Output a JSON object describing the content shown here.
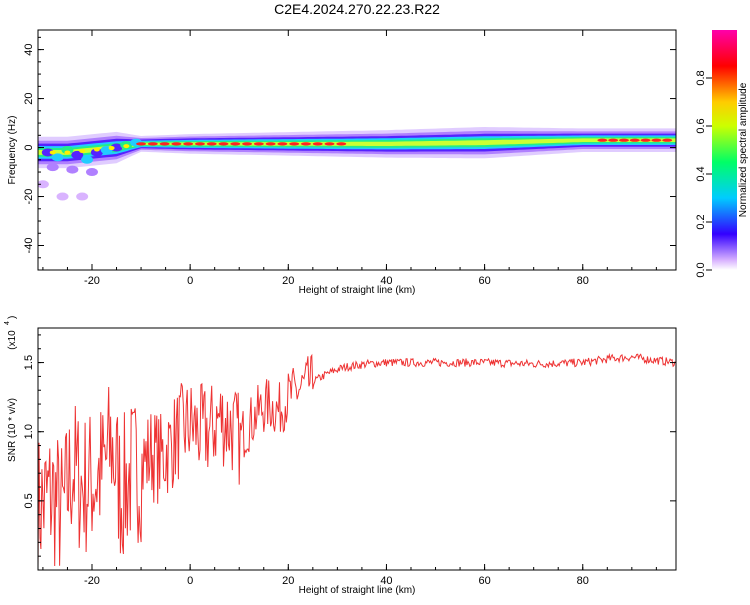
{
  "title": "C2E4.2024.270.22.23.R22",
  "chart_data": [
    {
      "type": "heatmap",
      "xlabel": "Height of straight line (km)",
      "ylabel": "Frequency (Hz)",
      "xlim": [
        -31,
        99
      ],
      "ylim": [
        -50,
        48
      ],
      "x_ticks": [
        -20,
        0,
        20,
        40,
        60,
        80
      ],
      "y_ticks": [
        40,
        20,
        0,
        -20,
        -40
      ],
      "colorbar": {
        "label": "Normalized spectral amplitude",
        "range": [
          0,
          1
        ],
        "ticks": [
          "0.0",
          "0.2",
          "0.4",
          "0.6",
          "0.8"
        ],
        "colors": [
          "#ffffff",
          "#bf80ff",
          "#3300ff",
          "#00ccff",
          "#00ff66",
          "#ffff00",
          "#ff0000",
          "#ff00aa"
        ]
      },
      "ridge": {
        "description_x_km": [
          -30,
          -25,
          -20,
          -15,
          -10,
          0,
          20,
          40,
          60,
          80,
          99
        ],
        "center_hz": [
          -2,
          -2,
          -1,
          0,
          1.5,
          1.5,
          1.5,
          1.5,
          2,
          3,
          3
        ],
        "halfwidth_hz": [
          4,
          4,
          4,
          4,
          2,
          2.5,
          3,
          3.5,
          4,
          3,
          3
        ]
      }
    },
    {
      "type": "line",
      "xlabel": "Height of straight line (km)",
      "ylabel": "SNR (10 * v/v)",
      "yscale_label": "(x10",
      "yscale_exp": "4",
      "xlim": [
        -31,
        99
      ],
      "ylim": [
        0,
        1.75
      ],
      "x_ticks": [
        -20,
        0,
        20,
        40,
        60,
        80
      ],
      "y_ticks": [
        "0.5",
        "1.0",
        "1.5"
      ],
      "series": [
        {
          "color": "#ee3333",
          "x": [
            -31,
            -28,
            -26,
            -24,
            -22,
            -20,
            -18,
            -16,
            -14,
            -12,
            -10,
            -8,
            -6,
            -4,
            -2,
            0,
            2,
            4,
            6,
            8,
            10,
            12,
            14,
            16,
            18,
            20,
            22,
            24,
            26,
            28,
            30,
            32,
            36,
            40,
            50,
            60,
            70,
            80,
            86,
            90,
            94,
            99
          ],
          "y": [
            0.45,
            0.55,
            0.4,
            0.75,
            0.6,
            0.65,
            0.7,
            0.9,
            0.55,
            0.7,
            0.75,
            0.85,
            0.8,
            0.9,
            1.0,
            1.05,
            1.0,
            1.0,
            1.1,
            1.05,
            0.95,
            1.05,
            1.15,
            1.2,
            1.15,
            1.25,
            1.3,
            1.35,
            1.38,
            1.42,
            1.45,
            1.47,
            1.49,
            1.5,
            1.5,
            1.5,
            1.49,
            1.5,
            1.53,
            1.54,
            1.52,
            1.5
          ]
        }
      ]
    }
  ]
}
